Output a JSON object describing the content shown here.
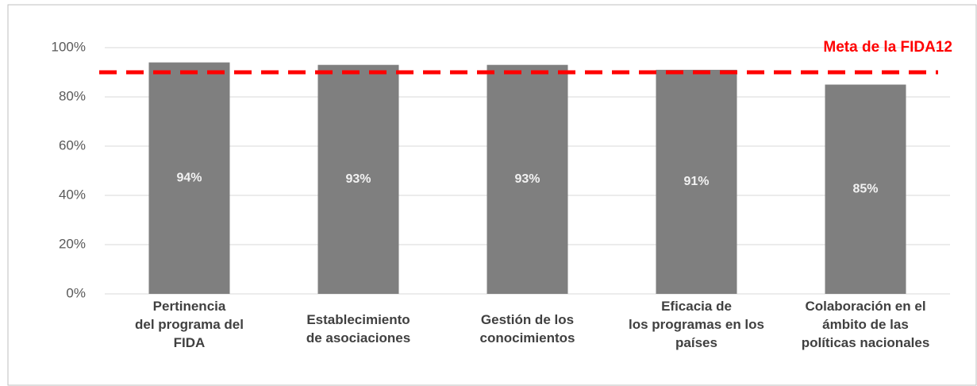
{
  "chart_data": {
    "type": "bar",
    "categories": [
      "Pertinencia\ndel programa del\nFIDA",
      "Establecimiento\nde asociaciones",
      "Gestión de los\nconocimientos",
      "Eficacia de\nlos programas en los\npaíses",
      "Colaboración en el\námbito de las\npolíticas nacionales"
    ],
    "values": [
      94,
      93,
      93,
      91,
      85
    ],
    "value_labels": [
      "94%",
      "93%",
      "93%",
      "91%",
      "85%"
    ],
    "color": "#7f7f7f",
    "ylim": [
      0,
      100
    ],
    "yticks": [
      {
        "value": 0,
        "label": "0%"
      },
      {
        "value": 20,
        "label": "20%"
      },
      {
        "value": 40,
        "label": "40%"
      },
      {
        "value": 60,
        "label": "60%"
      },
      {
        "value": 80,
        "label": "80%"
      },
      {
        "value": 100,
        "label": "100%"
      }
    ],
    "grid": true,
    "target": {
      "value": 90,
      "label": "Meta de la FIDA12",
      "color": "#ff0000"
    }
  }
}
